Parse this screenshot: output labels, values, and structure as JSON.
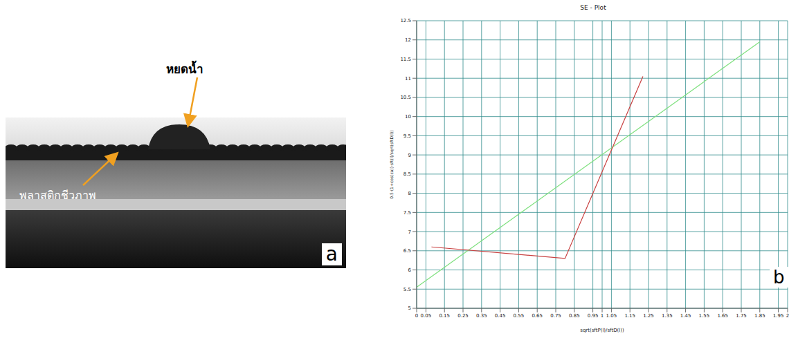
{
  "photo": {
    "panel": "a",
    "labels": {
      "droplet": "หยดน้ำ",
      "substrate": "พลาสติกชีวภาพ"
    }
  },
  "chart_data": {
    "type": "line",
    "title": "SE - Plot",
    "x_label": "sqrt(sftP(l)/sftD(l))",
    "y_label": "0.5·(1+cos(ca))·sft(l)/sqrt(sftD(l))",
    "annotations": [
      "b"
    ],
    "xlim": [
      0,
      2
    ],
    "xticks": [
      0,
      0.05,
      0.15,
      0.25,
      0.35,
      0.45,
      0.55,
      0.65,
      0.75,
      0.85,
      0.95,
      1,
      1.05,
      1.15,
      1.25,
      1.35,
      1.45,
      1.55,
      1.65,
      1.75,
      1.85,
      1.95,
      2
    ],
    "ylim": [
      5,
      12.5
    ],
    "yticks": [
      5,
      5.5,
      6,
      6.5,
      7,
      7.5,
      8,
      8.5,
      9,
      9.5,
      10,
      10.5,
      11,
      11.5,
      12,
      12.5
    ],
    "grid": true,
    "series": [
      {
        "color": "#7ee07e",
        "x": [
          0,
          1.85
        ],
        "values": [
          5.55,
          11.95
        ]
      },
      {
        "color": "#c84040",
        "x": [
          0.08,
          0.8,
          1.22
        ],
        "values": [
          6.6,
          6.3,
          11.05
        ]
      }
    ]
  }
}
